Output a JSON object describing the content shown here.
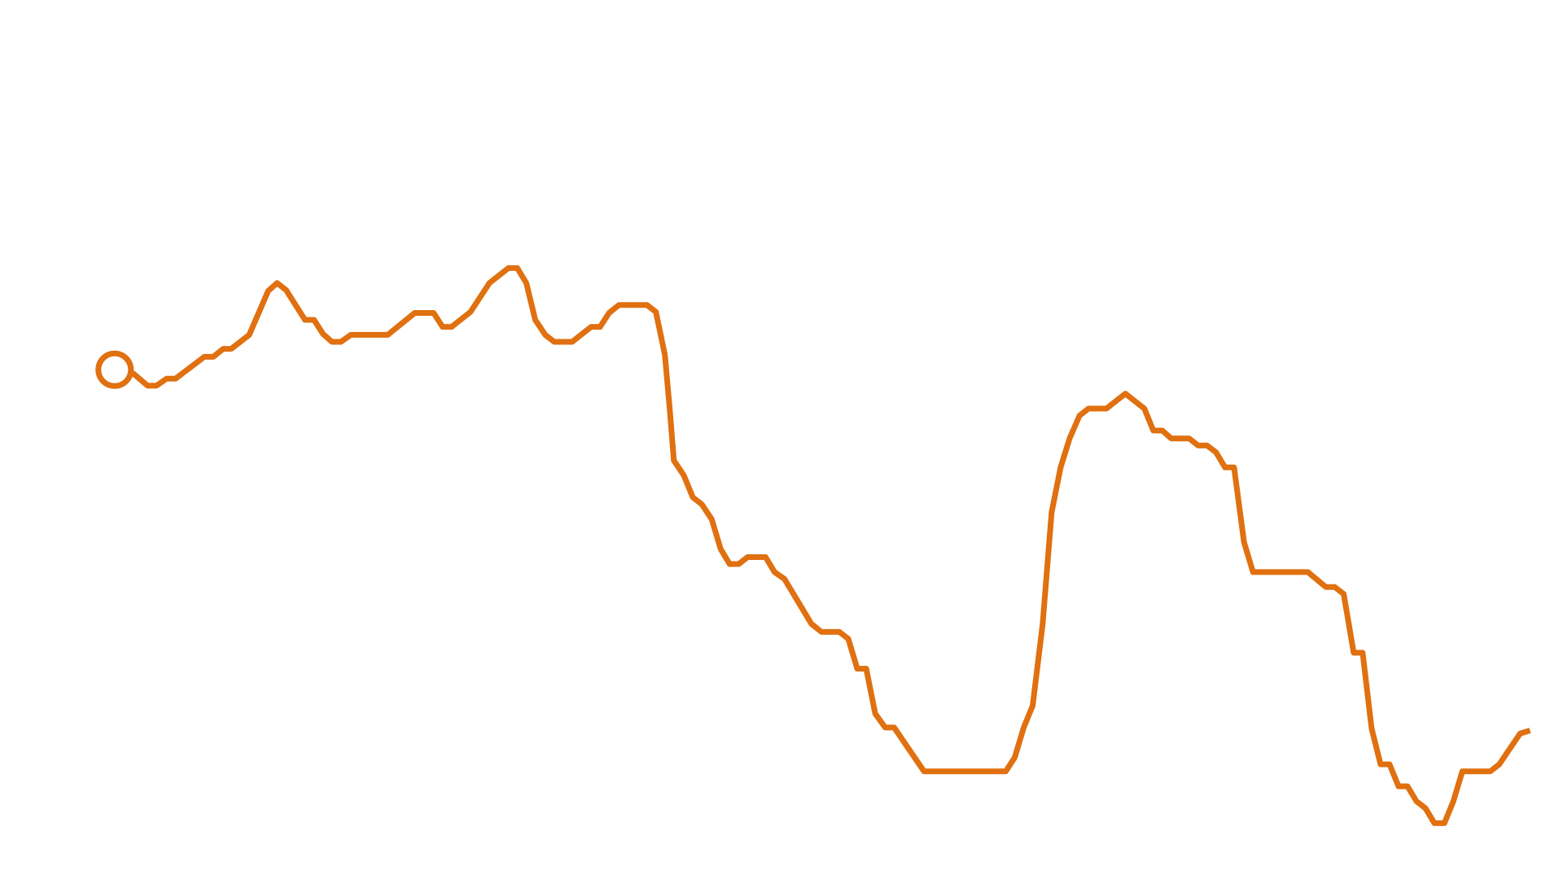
{
  "chart_data": {
    "type": "line",
    "x": [
      115,
      134,
      148,
      157,
      167,
      176,
      205,
      214,
      224,
      232,
      250,
      269,
      278,
      287,
      306,
      315,
      324,
      333,
      342,
      352,
      389,
      416,
      435,
      444,
      453,
      472,
      491,
      510,
      519,
      528,
      537,
      547,
      556,
      574,
      593,
      602,
      611,
      621,
      649,
      658,
      667,
      672,
      676,
      686,
      695,
      704,
      714,
      723,
      732,
      741,
      750,
      768,
      777,
      787,
      814,
      824,
      842,
      851,
      860,
      869,
      878,
      888,
      897,
      927,
      1009,
      1018,
      1027,
      1036,
      1046,
      1055,
      1064,
      1073,
      1083,
      1092,
      1110,
      1129,
      1148,
      1157,
      1166,
      1175,
      1193,
      1202,
      1211,
      1220,
      1229,
      1238,
      1248,
      1257,
      1312,
      1330,
      1339,
      1348,
      1358,
      1367,
      1376,
      1385,
      1394,
      1403,
      1412,
      1421,
      1430,
      1439,
      1449,
      1458,
      1467,
      1495,
      1504,
      1525,
      1535
    ],
    "series": [
      {
        "color": "#e07010",
        "values": [
          511,
          507,
          495,
          495,
          502,
          502,
          524,
          524,
          532,
          532,
          546,
          590,
          598,
          591,
          561,
          561,
          547,
          539,
          539,
          546,
          546,
          568,
          568,
          554,
          554,
          569,
          598,
          613,
          613,
          598,
          561,
          546,
          539,
          539,
          554,
          554,
          568,
          576,
          576,
          569,
          526,
          470,
          420,
          405,
          383,
          376,
          361,
          331,
          316,
          316,
          323,
          323,
          308,
          301,
          256,
          248,
          248,
          241,
          211,
          211,
          166,
          152,
          152,
          108,
          108,
          122,
          152,
          174,
          256,
          368,
          413,
          442,
          465,
          472,
          472,
          487,
          472,
          450,
          450,
          442,
          442,
          435,
          435,
          428,
          413,
          413,
          338,
          308,
          308,
          293,
          293,
          286,
          227,
          227,
          151,
          115,
          115,
          93,
          93,
          78,
          71,
          56,
          56,
          78,
          108,
          108,
          115,
          146,
          149
        ]
      }
    ],
    "xlim": [
      0,
      1568
    ],
    "ylim": [
      0,
      882
    ]
  }
}
